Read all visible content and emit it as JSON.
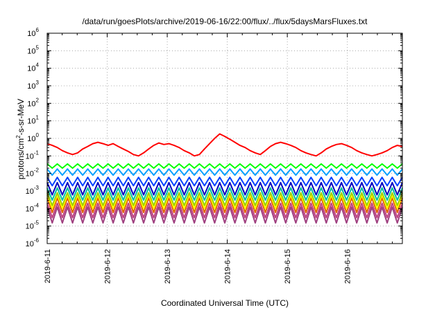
{
  "chart_data": {
    "type": "line",
    "title": "/data/run/goesPlots/archive/2019-06-16/22:00/flux/../flux/5daysMarsFluxes.txt",
    "xlabel": "Coordinated Universal Time (UTC)",
    "ylabel_main": "protons/cm",
    "ylabel_sup": "2",
    "ylabel_rest": "-s-sr-MeV",
    "x_ticks": [
      "2019-6-11",
      "2019-6-12",
      "2019-6-13",
      "2019-6-14",
      "2019-6-15",
      "2019-6-16"
    ],
    "xlim": [
      "2019-06-11 00:00",
      "2019-06-16 22:00"
    ],
    "y_scale": "log",
    "ylim": [
      1e-06,
      1000000.0
    ],
    "y_ticks": [
      {
        "base": "10",
        "exp": "-6"
      },
      {
        "base": "10",
        "exp": "-5"
      },
      {
        "base": "10",
        "exp": "-4"
      },
      {
        "base": "10",
        "exp": "-3"
      },
      {
        "base": "10",
        "exp": "-2"
      },
      {
        "base": "10",
        "exp": "-1"
      },
      {
        "base": "10",
        "exp": "0"
      },
      {
        "base": "10",
        "exp": "1"
      },
      {
        "base": "10",
        "exp": "2"
      },
      {
        "base": "10",
        "exp": "3"
      },
      {
        "base": "10",
        "exp": "4"
      },
      {
        "base": "10",
        "exp": "5"
      },
      {
        "base": "10",
        "exp": "6"
      }
    ],
    "grid": "dotted",
    "series": [
      {
        "color": "#ff0000",
        "values": [
          0.5,
          0.4,
          0.3,
          0.2,
          0.15,
          0.12,
          0.15,
          0.25,
          0.35,
          0.5,
          0.6,
          0.5,
          0.4,
          0.5,
          0.35,
          0.25,
          0.18,
          0.12,
          0.1,
          0.15,
          0.25,
          0.4,
          0.55,
          0.45,
          0.5,
          0.4,
          0.3,
          0.2,
          0.15,
          0.1,
          0.12,
          0.25,
          0.5,
          1.0,
          1.8,
          1.3,
          0.9,
          0.6,
          0.4,
          0.3,
          0.2,
          0.15,
          0.12,
          0.2,
          0.35,
          0.5,
          0.6,
          0.5,
          0.4,
          0.3,
          0.2,
          0.15,
          0.12,
          0.1,
          0.15,
          0.25,
          0.35,
          0.45,
          0.5,
          0.4,
          0.3,
          0.2,
          0.15,
          0.12,
          0.1,
          0.12,
          0.15,
          0.2,
          0.3,
          0.4,
          0.35
        ]
      },
      {
        "color": "#00ff00",
        "values": [
          0.035,
          0.02
        ]
      },
      {
        "color": "#00a0ff",
        "values": [
          0.018,
          0.008
        ]
      },
      {
        "color": "#0040ff",
        "values": [
          0.006,
          0.002
        ]
      },
      {
        "color": "#0000c0",
        "values": [
          0.003,
          0.0006
        ]
      },
      {
        "color": "#00c0a0",
        "values": [
          0.0015,
          0.0003
        ]
      },
      {
        "color": "#a0d000",
        "values": [
          0.0008,
          0.00015
        ]
      },
      {
        "color": "#ffff00",
        "values": [
          0.0006,
          0.0001
        ]
      },
      {
        "color": "#e06000",
        "values": [
          0.0004,
          6e-05
        ]
      },
      {
        "color": "#c04080",
        "values": [
          0.0002,
          3e-05
        ]
      },
      {
        "color": "#a04080",
        "values": [
          0.00012,
          1.5e-05
        ]
      }
    ]
  }
}
